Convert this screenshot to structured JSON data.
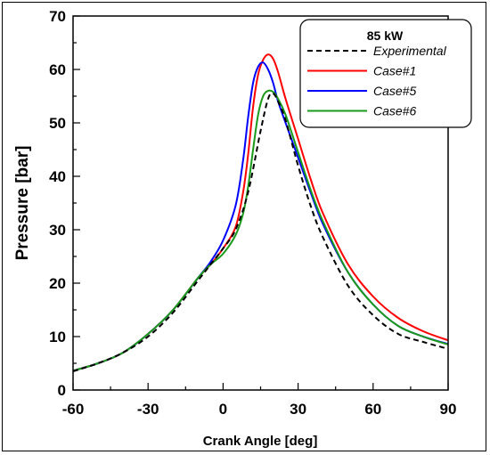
{
  "chart_data": {
    "type": "line",
    "title": "",
    "xlabel": "Crank Angle [deg]",
    "ylabel": "Pressure [bar]",
    "xlim": [
      -60,
      90
    ],
    "ylim": [
      0,
      70
    ],
    "xticks": [
      -60,
      -30,
      0,
      30,
      60,
      90
    ],
    "yticks": [
      0,
      10,
      20,
      30,
      40,
      50,
      60,
      70
    ],
    "grid": false,
    "legend": {
      "title": "85 kW",
      "position": "top-right"
    },
    "series": [
      {
        "name": "Experimental",
        "color": "#000000",
        "dash": "dashed",
        "x": [
          -60,
          -50,
          -40,
          -30,
          -20,
          -10,
          -5,
          0,
          5,
          10,
          15,
          18,
          20,
          22,
          25,
          30,
          35,
          40,
          50,
          60,
          70,
          80,
          90
        ],
        "y": [
          3.5,
          5,
          7,
          10,
          14.5,
          20.5,
          23.5,
          26.5,
          30,
          37,
          48.5,
          54.5,
          55.5,
          54,
          50.5,
          42,
          34.5,
          28.5,
          19.5,
          14,
          10.5,
          9,
          7.7
        ]
      },
      {
        "name": "Case#1",
        "color": "#ff0000",
        "dash": "solid",
        "x": [
          -60,
          -50,
          -40,
          -30,
          -20,
          -10,
          -5,
          0,
          5,
          8,
          10,
          12,
          14,
          16,
          18,
          20,
          22,
          25,
          30,
          35,
          40,
          50,
          60,
          70,
          80,
          90
        ],
        "y": [
          3.6,
          5,
          7,
          10.5,
          15,
          21,
          23.5,
          26.5,
          30.5,
          37,
          44,
          53,
          59,
          61.8,
          62.8,
          62,
          59.5,
          54.5,
          47,
          39.5,
          33,
          23.5,
          17.5,
          13.5,
          11,
          9.3
        ]
      },
      {
        "name": "Case#5",
        "color": "#0000ff",
        "dash": "solid",
        "x": [
          -60,
          -50,
          -40,
          -30,
          -20,
          -10,
          -5,
          0,
          5,
          8,
          10,
          12,
          14,
          16,
          18,
          20,
          22,
          25,
          30,
          35,
          40,
          50,
          60,
          70,
          80,
          90
        ],
        "y": [
          3.6,
          5,
          7,
          10.5,
          15,
          21,
          24,
          28,
          34.5,
          43,
          51,
          57.5,
          60.5,
          61.3,
          60,
          57.5,
          54,
          50,
          43.5,
          37,
          31,
          22,
          16,
          12,
          10,
          8.6
        ]
      },
      {
        "name": "Case#6",
        "color": "#1a9a1a",
        "dash": "solid",
        "x": [
          -60,
          -50,
          -40,
          -30,
          -20,
          -10,
          -5,
          0,
          5,
          8,
          10,
          12,
          14,
          16,
          18,
          20,
          22,
          25,
          30,
          35,
          40,
          50,
          60,
          70,
          80,
          90
        ],
        "y": [
          3.6,
          5,
          7,
          10.5,
          15,
          21,
          23.5,
          25.5,
          29,
          33,
          38,
          45,
          51.5,
          55,
          56,
          55.8,
          54.5,
          51.5,
          44.5,
          37.5,
          31.5,
          22,
          16,
          12,
          10,
          8.5
        ]
      }
    ]
  }
}
